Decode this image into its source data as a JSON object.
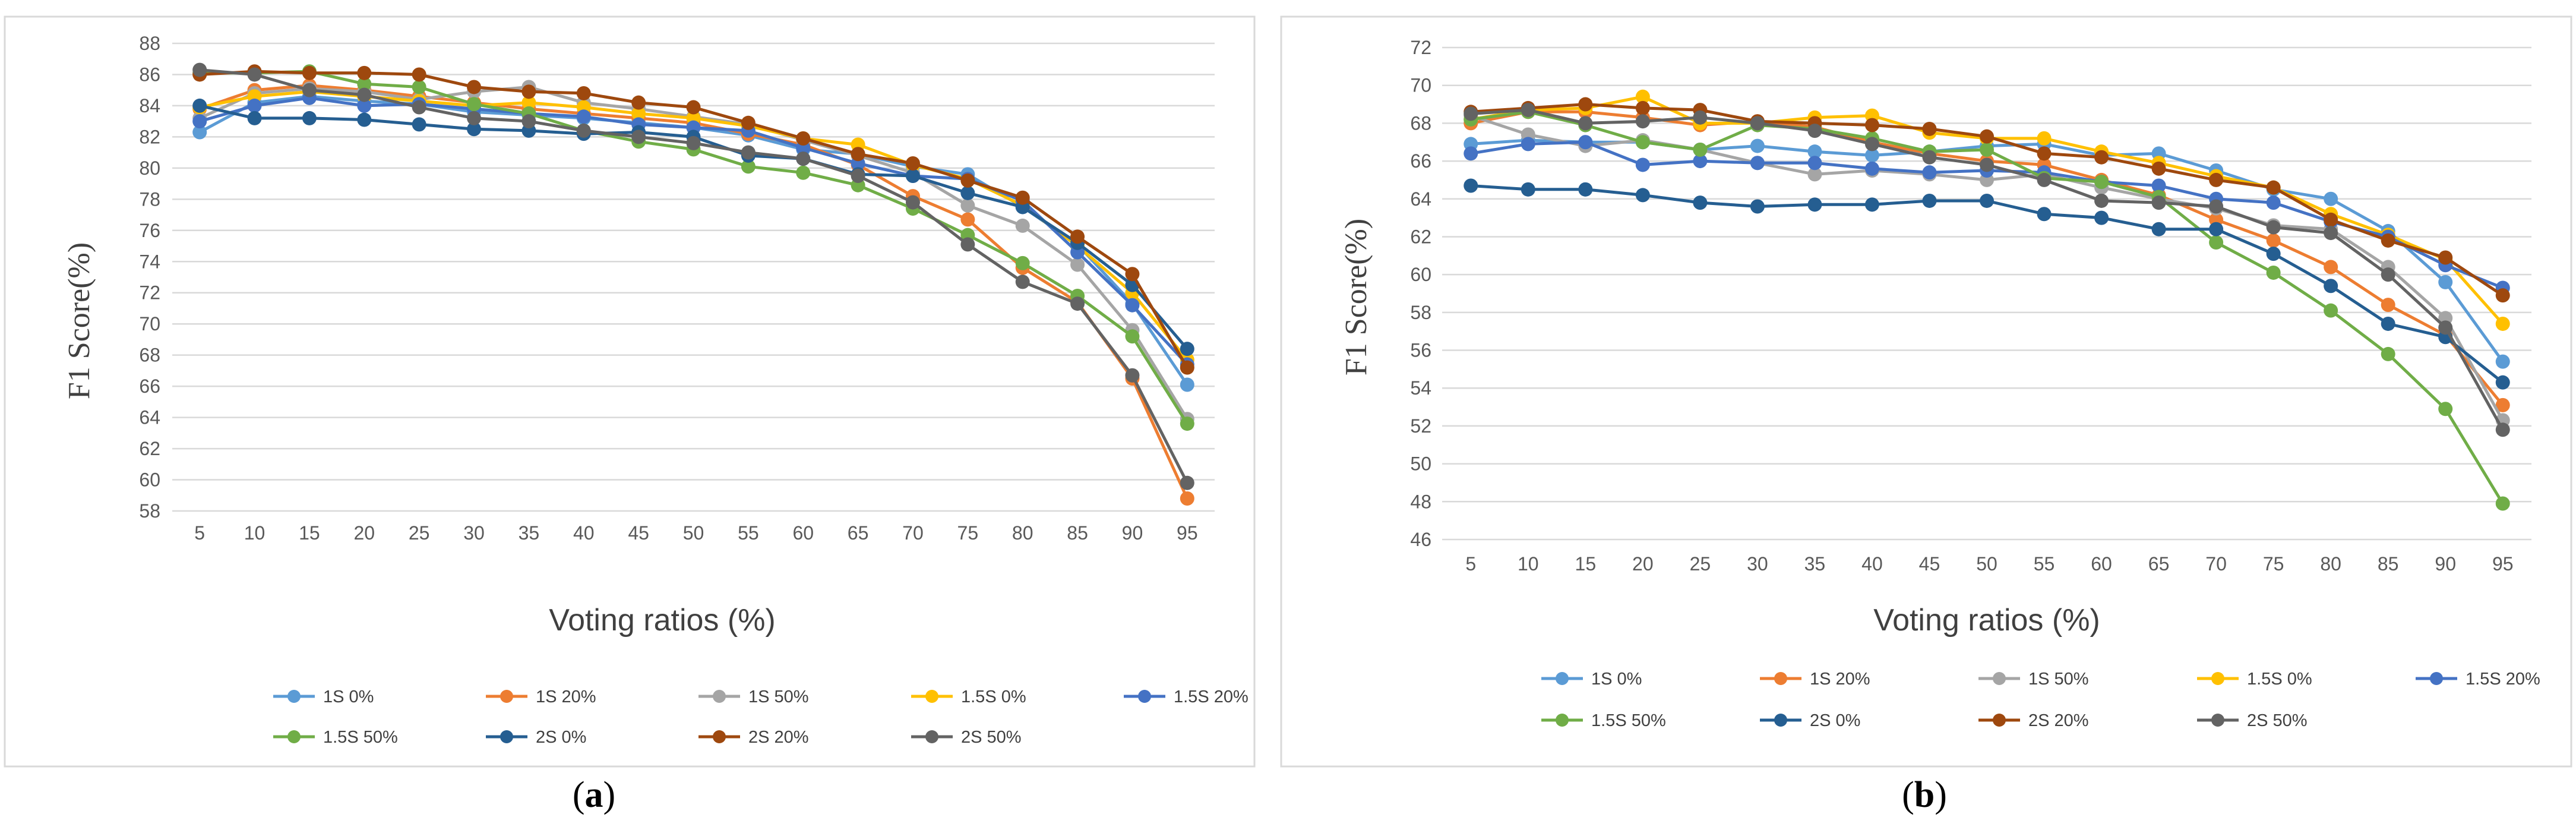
{
  "chart_data": [
    {
      "type": "line",
      "panel_label": "a",
      "title": "",
      "xlabel": "Voting ratios (%)",
      "ylabel": "F1 Score(%)",
      "ylim": [
        58,
        88
      ],
      "ytick_step": 2,
      "x": [
        5,
        10,
        15,
        20,
        25,
        30,
        35,
        40,
        45,
        50,
        55,
        60,
        65,
        70,
        75,
        80,
        85,
        90,
        95
      ],
      "grid": true,
      "legend_position": "bottom",
      "series": [
        {
          "name": "1S 0%",
          "color": "#5B9BD5",
          "values": [
            82.3,
            84.2,
            84.6,
            84.3,
            84.1,
            83.6,
            83.4,
            83.2,
            82.9,
            82.6,
            82.1,
            81.2,
            80.9,
            80.1,
            79.6,
            77.5,
            75.1,
            71.3,
            66.1
          ]
        },
        {
          "name": "1S 20%",
          "color": "#ED7D31",
          "values": [
            83.8,
            85.0,
            85.3,
            85.0,
            84.6,
            84.2,
            83.8,
            83.5,
            83.2,
            82.9,
            82.2,
            81.5,
            80.2,
            78.2,
            76.7,
            73.6,
            71.4,
            66.5,
            58.8
          ]
        },
        {
          "name": "1S 50%",
          "color": "#A5A5A5",
          "values": [
            83.2,
            84.8,
            85.1,
            84.9,
            84.4,
            84.9,
            85.2,
            84.2,
            83.8,
            83.3,
            82.8,
            81.8,
            80.8,
            79.7,
            77.6,
            76.3,
            73.8,
            69.6,
            63.9
          ]
        },
        {
          "name": "1.5S 0%",
          "color": "#FFC000",
          "values": [
            83.9,
            84.6,
            84.9,
            84.6,
            84.3,
            84.0,
            84.2,
            83.9,
            83.5,
            83.2,
            82.7,
            81.9,
            81.5,
            80.2,
            79.3,
            77.6,
            75.0,
            72.0,
            67.7
          ]
        },
        {
          "name": "1.5S 20%",
          "color": "#4472C4",
          "values": [
            83.0,
            84.0,
            84.5,
            84.0,
            84.1,
            83.8,
            83.5,
            83.3,
            82.8,
            82.6,
            82.4,
            81.3,
            80.3,
            79.5,
            79.3,
            77.9,
            74.6,
            71.2,
            67.4
          ]
        },
        {
          "name": "1.5S 50%",
          "color": "#70AD47",
          "values": [
            86.1,
            86.1,
            86.2,
            85.4,
            85.2,
            84.1,
            83.5,
            82.4,
            81.7,
            81.2,
            80.1,
            79.7,
            78.9,
            77.4,
            75.7,
            73.9,
            71.8,
            69.2,
            63.6
          ]
        },
        {
          "name": "2S 0%",
          "color": "#255E91",
          "values": [
            84.0,
            83.2,
            83.2,
            83.1,
            82.8,
            82.5,
            82.4,
            82.2,
            82.3,
            82.0,
            80.8,
            80.6,
            79.6,
            79.5,
            78.4,
            77.5,
            75.2,
            72.5,
            68.4
          ]
        },
        {
          "name": "2S 20%",
          "color": "#9E480E",
          "values": [
            86.0,
            86.2,
            86.1,
            86.1,
            86.0,
            85.2,
            84.9,
            84.8,
            84.2,
            83.9,
            82.9,
            81.9,
            80.9,
            80.3,
            79.2,
            78.1,
            75.6,
            73.2,
            67.2
          ]
        },
        {
          "name": "2S 50%",
          "color": "#636363",
          "values": [
            86.3,
            86.0,
            85.0,
            84.7,
            83.9,
            83.2,
            83.0,
            82.4,
            82.0,
            81.6,
            81.0,
            80.6,
            79.5,
            77.8,
            75.1,
            72.7,
            71.3,
            66.7,
            59.8
          ]
        }
      ]
    },
    {
      "type": "line",
      "panel_label": "b",
      "title": "",
      "xlabel": "Voting ratios (%)",
      "ylabel": "F1 Score(%)",
      "ylim": [
        46,
        72
      ],
      "ytick_step": 2,
      "x": [
        5,
        10,
        15,
        20,
        25,
        30,
        35,
        40,
        45,
        50,
        55,
        60,
        65,
        70,
        75,
        80,
        85,
        90,
        95
      ],
      "grid": true,
      "legend_position": "bottom",
      "series": [
        {
          "name": "1S 0%",
          "color": "#5B9BD5",
          "values": [
            66.9,
            67.1,
            67.0,
            67.0,
            66.6,
            66.8,
            66.5,
            66.3,
            66.5,
            66.8,
            66.9,
            66.3,
            66.4,
            65.5,
            64.5,
            64.0,
            62.3,
            59.6,
            55.4
          ]
        },
        {
          "name": "1S 20%",
          "color": "#ED7D31",
          "values": [
            68.0,
            68.6,
            68.6,
            68.3,
            67.9,
            68.1,
            67.8,
            67.0,
            66.4,
            66.0,
            65.8,
            65.0,
            64.2,
            62.9,
            61.8,
            60.4,
            58.4,
            56.8,
            53.1
          ]
        },
        {
          "name": "1S 50%",
          "color": "#A5A5A5",
          "values": [
            68.4,
            67.4,
            66.8,
            67.1,
            66.6,
            65.9,
            65.3,
            65.5,
            65.3,
            65.0,
            65.3,
            64.6,
            64.0,
            63.5,
            62.6,
            62.4,
            60.4,
            57.7,
            52.3
          ]
        },
        {
          "name": "1.5S 0%",
          "color": "#FFC000",
          "values": [
            68.2,
            68.7,
            68.8,
            69.4,
            68.0,
            68.0,
            68.3,
            68.4,
            67.5,
            67.2,
            67.2,
            66.5,
            65.9,
            65.2,
            64.6,
            63.2,
            62.1,
            60.8,
            57.4
          ]
        },
        {
          "name": "1.5S 20%",
          "color": "#4472C4",
          "values": [
            66.4,
            66.9,
            67.0,
            65.8,
            66.0,
            65.9,
            65.9,
            65.6,
            65.4,
            65.5,
            65.4,
            64.9,
            64.7,
            64.0,
            63.8,
            62.8,
            62.0,
            60.5,
            59.3
          ]
        },
        {
          "name": "1.5S 50%",
          "color": "#70AD47",
          "values": [
            68.2,
            68.6,
            67.9,
            67.0,
            66.6,
            67.9,
            67.7,
            67.2,
            66.5,
            66.6,
            65.1,
            64.9,
            64.1,
            61.7,
            60.1,
            58.1,
            55.8,
            52.9,
            47.9
          ]
        },
        {
          "name": "2S 0%",
          "color": "#255E91",
          "values": [
            64.7,
            64.5,
            64.5,
            64.2,
            63.8,
            63.6,
            63.7,
            63.7,
            63.9,
            63.9,
            63.2,
            63.0,
            62.4,
            62.4,
            61.1,
            59.4,
            57.4,
            56.7,
            54.3
          ]
        },
        {
          "name": "2S 20%",
          "color": "#9E480E",
          "values": [
            68.6,
            68.8,
            69.0,
            68.8,
            68.7,
            68.1,
            68.0,
            67.9,
            67.7,
            67.3,
            66.4,
            66.2,
            65.6,
            65.0,
            64.6,
            62.9,
            61.8,
            60.9,
            58.9
          ]
        },
        {
          "name": "2S 50%",
          "color": "#636363",
          "values": [
            68.5,
            68.7,
            68.0,
            68.1,
            68.3,
            68.0,
            67.6,
            66.9,
            66.2,
            65.8,
            65.0,
            63.9,
            63.8,
            63.6,
            62.5,
            62.2,
            60.0,
            57.2,
            51.8
          ]
        }
      ]
    }
  ]
}
